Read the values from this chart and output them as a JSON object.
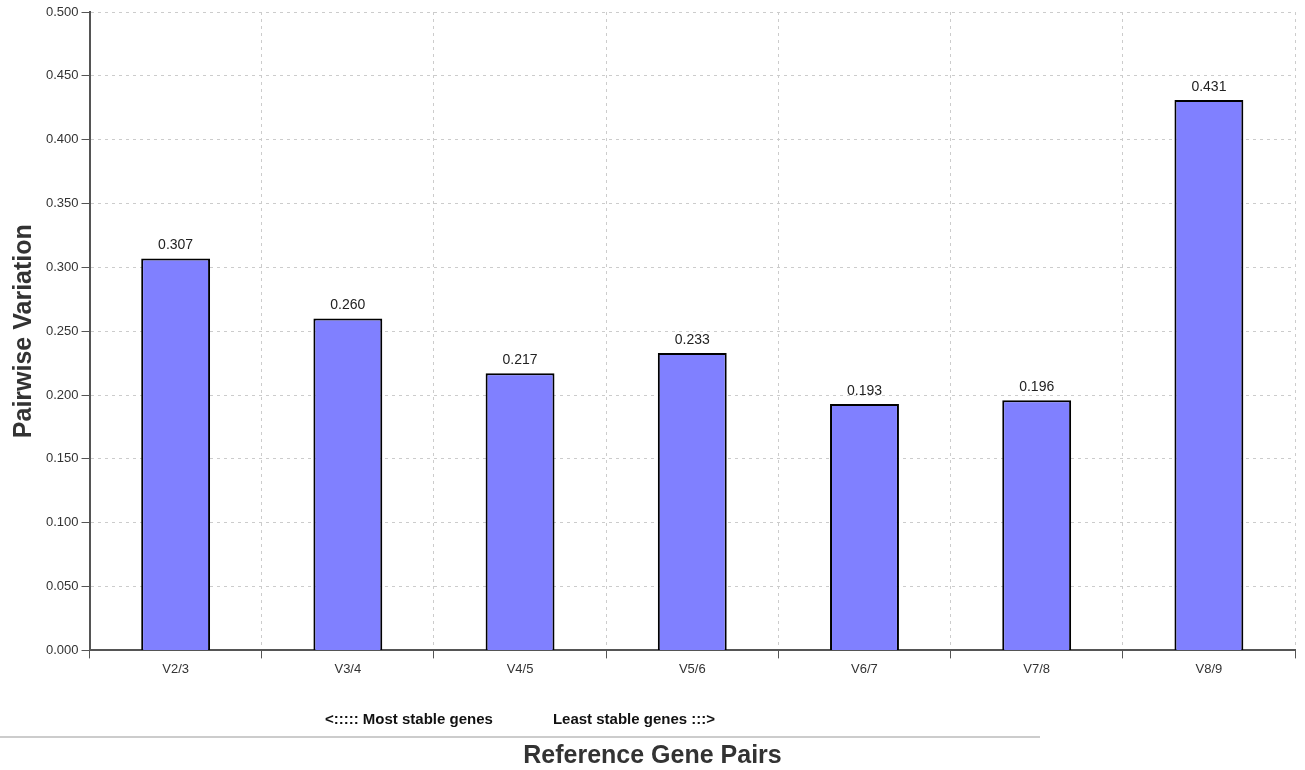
{
  "chart_data": {
    "type": "bar",
    "xlabel": "Reference Gene Pairs",
    "ylabel": "Pairwise Variation",
    "categories": [
      "V2/3",
      "V3/4",
      "V4/5",
      "V5/6",
      "V6/7",
      "V7/8",
      "V8/9"
    ],
    "values": [
      0.307,
      0.26,
      0.217,
      0.233,
      0.193,
      0.196,
      0.431
    ],
    "color": "#8080ff",
    "ylim": [
      0,
      0.5
    ],
    "yticks": [
      {
        "value": 0,
        "label": "0.000"
      },
      {
        "value": 0.05,
        "label": "0.050"
      },
      {
        "value": 0.1,
        "label": "0.100"
      },
      {
        "value": 0.15,
        "label": "0.150"
      },
      {
        "value": 0.2,
        "label": "0.200"
      },
      {
        "value": 0.25,
        "label": "0.250"
      },
      {
        "value": 0.3,
        "label": "0.300"
      },
      {
        "value": 0.35,
        "label": "0.350"
      },
      {
        "value": 0.4,
        "label": "0.400"
      },
      {
        "value": 0.45,
        "label": "0.450"
      },
      {
        "value": 0.5,
        "label": "0.500"
      }
    ],
    "value_labels": [
      "0.307",
      "0.260",
      "0.217",
      "0.233",
      "0.193",
      "0.196",
      "0.431"
    ],
    "grid": true,
    "annotations": [
      "<:::::   Most stable genes",
      "Least stable genes   :::>"
    ]
  }
}
